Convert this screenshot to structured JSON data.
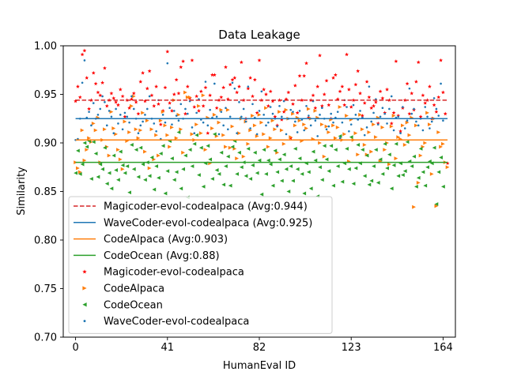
{
  "chart_data": {
    "type": "scatter",
    "title": "Data Leakage",
    "xlabel": "HumanEval ID",
    "ylabel": "Similarity",
    "xlim": [
      -5.5,
      169.5
    ],
    "ylim": [
      0.7,
      1.0
    ],
    "xticks": [
      0,
      41,
      82,
      123,
      164
    ],
    "yticks": [
      0.7,
      0.75,
      0.8,
      0.85,
      0.9,
      0.95,
      1.0
    ],
    "grid": false,
    "legend_position": "lower-left",
    "average_lines": [
      {
        "name": "Magicoder-evol-codealpaca (Avg:0.944)",
        "y": 0.944,
        "color": "#d62728",
        "dashed": true
      },
      {
        "name": "WaveCoder-evol-codealpaca (Avg:0.925)",
        "y": 0.925,
        "color": "#1f77b4",
        "dashed": false
      },
      {
        "name": "CodeAlpaca (Avg:0.903)",
        "y": 0.903,
        "color": "#ff7f0e",
        "dashed": false
      },
      {
        "name": "CodeOcean (Avg:0.88)",
        "y": 0.88,
        "color": "#2ca02c",
        "dashed": false
      }
    ],
    "series": [
      {
        "name": "Magicoder-evol-codealpaca",
        "marker": "star",
        "color": "#ff0000",
        "values": [
          0.943,
          0.958,
          0.947,
          0.991,
          0.995,
          0.967,
          0.935,
          0.944,
          0.972,
          0.961,
          0.952,
          0.949,
          0.962,
          0.977,
          0.938,
          0.944,
          0.951,
          0.946,
          0.942,
          0.939,
          0.955,
          0.948,
          0.927,
          0.944,
          0.936,
          0.945,
          0.951,
          0.942,
          0.93,
          0.963,
          0.972,
          0.943,
          0.956,
          0.974,
          0.949,
          0.938,
          0.958,
          0.94,
          0.919,
          0.933,
          0.957,
          0.994,
          0.941,
          0.933,
          0.95,
          0.965,
          0.951,
          0.978,
          0.984,
          0.93,
          0.958,
          0.946,
          0.985,
          0.937,
          0.948,
          0.933,
          0.953,
          0.938,
          0.957,
          0.91,
          0.949,
          0.97,
          0.97,
          0.936,
          0.944,
          0.947,
          0.957,
          0.978,
          0.945,
          0.96,
          0.965,
          0.967,
          0.952,
          0.958,
          0.983,
          0.944,
          0.925,
          0.956,
          0.967,
          0.948,
          0.965,
          0.931,
          0.985,
          0.944,
          0.955,
          0.95,
          0.938,
          0.953,
          0.943,
          0.927,
          0.918,
          0.944,
          0.924,
          0.932,
          0.945,
          0.952,
          0.905,
          0.94,
          0.959,
          0.931,
          0.969,
          0.944,
          0.969,
          0.982,
          0.926,
          0.944,
          0.949,
          0.936,
          0.958,
          0.99,
          0.938,
          0.95,
          0.964,
          0.939,
          0.925,
          0.967,
          0.97,
          0.945,
          0.953,
          0.958,
          0.939,
          0.991,
          0.955,
          0.937,
          0.944,
          0.96,
          0.974,
          0.951,
          0.928,
          0.941,
          0.963,
          0.947,
          0.936,
          0.938,
          0.942,
          0.92,
          0.953,
          0.946,
          0.931,
          0.955,
          0.944,
          0.92,
          0.931,
          0.984,
          0.928,
          0.912,
          0.936,
          0.944,
          0.961,
          0.93,
          0.951,
          0.934,
          0.963,
          0.983,
          0.927,
          0.949,
          0.941,
          0.944,
          0.958,
          0.925,
          0.939,
          0.932,
          0.947,
          0.985,
          0.952,
          0.93,
          0.879
        ]
      },
      {
        "name": "CodeAlpaca",
        "marker": "triangle-right",
        "color": "#ff7f0e",
        "values": [
          0.88,
          0.874,
          0.87,
          0.913,
          0.882,
          0.893,
          0.905,
          0.901,
          0.92,
          0.913,
          0.926,
          0.88,
          0.903,
          0.914,
          0.896,
          0.887,
          0.932,
          0.915,
          0.909,
          0.893,
          0.883,
          0.873,
          0.922,
          0.902,
          0.911,
          0.938,
          0.948,
          0.914,
          0.905,
          0.913,
          0.931,
          0.891,
          0.923,
          0.874,
          0.914,
          0.883,
          0.908,
          0.887,
          0.923,
          0.932,
          0.918,
          0.908,
          0.896,
          0.916,
          0.944,
          0.905,
          0.929,
          0.914,
          0.89,
          0.952,
          0.947,
          0.947,
          0.909,
          0.903,
          0.919,
          0.938,
          0.91,
          0.949,
          0.893,
          0.926,
          0.879,
          0.915,
          0.929,
          0.907,
          0.921,
          0.934,
          0.908,
          0.896,
          0.934,
          0.895,
          0.917,
          0.894,
          0.884,
          0.91,
          0.925,
          0.886,
          0.922,
          0.899,
          0.913,
          0.928,
          0.918,
          0.907,
          0.929,
          0.921,
          0.909,
          0.936,
          0.896,
          0.905,
          0.923,
          0.914,
          0.89,
          0.932,
          0.913,
          0.899,
          0.934,
          0.925,
          0.906,
          0.93,
          0.918,
          0.926,
          0.923,
          0.902,
          0.919,
          0.915,
          0.935,
          0.925,
          0.904,
          0.933,
          0.926,
          0.9,
          0.919,
          0.886,
          0.917,
          0.911,
          0.924,
          0.918,
          0.905,
          0.916,
          0.937,
          0.903,
          0.909,
          0.928,
          0.881,
          0.924,
          0.903,
          0.91,
          0.888,
          0.929,
          0.914,
          0.898,
          0.888,
          0.911,
          0.891,
          0.919,
          0.906,
          0.926,
          0.881,
          0.916,
          0.893,
          0.9,
          0.878,
          0.917,
          0.928,
          0.884,
          0.906,
          0.904,
          0.918,
          0.898,
          0.921,
          0.908,
          0.926,
          0.834,
          0.918,
          0.859,
          0.887,
          0.896,
          0.9,
          0.931,
          0.919,
          0.868,
          0.925,
          0.835,
          0.911,
          0.896,
          0.899,
          0.88,
          0.875
        ]
      },
      {
        "name": "CodeOcean",
        "marker": "triangle-left",
        "color": "#2ca02c",
        "values": [
          0.869,
          0.892,
          0.868,
          0.878,
          0.9,
          0.896,
          0.902,
          0.863,
          0.901,
          0.889,
          0.865,
          0.878,
          0.873,
          0.895,
          0.858,
          0.869,
          0.853,
          0.887,
          0.872,
          0.862,
          0.891,
          0.877,
          0.869,
          0.876,
          0.849,
          0.898,
          0.873,
          0.893,
          0.865,
          0.895,
          0.878,
          0.862,
          0.88,
          0.866,
          0.885,
          0.852,
          0.876,
          0.864,
          0.889,
          0.897,
          0.848,
          0.871,
          0.902,
          0.884,
          0.862,
          0.87,
          0.911,
          0.853,
          0.873,
          0.887,
          0.844,
          0.893,
          0.876,
          0.899,
          0.908,
          0.867,
          0.895,
          0.855,
          0.879,
          0.897,
          0.883,
          0.863,
          0.909,
          0.872,
          0.868,
          0.89,
          0.857,
          0.876,
          0.886,
          0.856,
          0.896,
          0.902,
          0.868,
          0.89,
          0.875,
          0.88,
          0.866,
          0.894,
          0.863,
          0.877,
          0.89,
          0.869,
          0.882,
          0.847,
          0.893,
          0.868,
          0.882,
          0.878,
          0.856,
          0.892,
          0.87,
          0.883,
          0.861,
          0.888,
          0.873,
          0.85,
          0.876,
          0.861,
          0.894,
          0.873,
          0.884,
          0.868,
          0.848,
          0.879,
          0.87,
          0.853,
          0.891,
          0.882,
          0.845,
          0.875,
          0.862,
          0.897,
          0.883,
          0.871,
          0.897,
          0.856,
          0.893,
          0.876,
          0.907,
          0.86,
          0.879,
          0.894,
          0.873,
          0.906,
          0.858,
          0.874,
          0.898,
          0.879,
          0.893,
          0.866,
          0.887,
          0.857,
          0.861,
          0.876,
          0.893,
          0.859,
          0.883,
          0.868,
          0.899,
          0.874,
          0.888,
          0.853,
          0.877,
          0.899,
          0.866,
          0.879,
          0.867,
          0.871,
          0.901,
          0.881,
          0.876,
          0.886,
          0.855,
          0.864,
          0.894,
          0.87,
          0.856,
          0.875,
          0.881,
          0.879,
          0.895,
          0.837,
          0.87,
          0.885,
          0.855
        ]
      },
      {
        "name": "WaveCoder-evol-codealpaca",
        "marker": "point",
        "color": "#1f77b4",
        "values": [
          0.903,
          0.904,
          0.925,
          0.962,
          0.985,
          0.926,
          0.932,
          0.918,
          0.941,
          0.925,
          0.929,
          0.935,
          0.948,
          0.942,
          0.918,
          0.933,
          0.927,
          0.91,
          0.935,
          0.92,
          0.929,
          0.914,
          0.931,
          0.927,
          0.921,
          0.948,
          0.935,
          0.925,
          0.91,
          0.918,
          0.922,
          0.929,
          0.935,
          0.948,
          0.925,
          0.92,
          0.912,
          0.944,
          0.904,
          0.929,
          0.921,
          0.982,
          0.936,
          0.919,
          0.933,
          0.928,
          0.923,
          0.94,
          0.925,
          0.935,
          0.93,
          0.943,
          0.916,
          0.91,
          0.931,
          0.945,
          0.924,
          0.921,
          0.963,
          0.918,
          0.934,
          0.926,
          0.961,
          0.927,
          0.909,
          0.932,
          0.918,
          0.936,
          0.914,
          0.927,
          0.962,
          0.956,
          0.91,
          0.942,
          0.927,
          0.935,
          0.922,
          0.958,
          0.915,
          0.94,
          0.926,
          0.909,
          0.933,
          0.953,
          0.929,
          0.918,
          0.921,
          0.937,
          0.93,
          0.925,
          0.917,
          0.938,
          0.927,
          0.943,
          0.909,
          0.925,
          0.934,
          0.932,
          0.922,
          0.911,
          0.933,
          0.924,
          0.913,
          0.938,
          0.928,
          0.918,
          0.943,
          0.923,
          0.907,
          0.929,
          0.936,
          0.925,
          0.914,
          0.917,
          0.93,
          0.921,
          0.926,
          0.932,
          0.905,
          0.921,
          0.944,
          0.937,
          0.912,
          0.919,
          0.939,
          0.929,
          0.924,
          0.933,
          0.926,
          0.908,
          0.916,
          0.958,
          0.922,
          0.931,
          0.945,
          0.919,
          0.927,
          0.936,
          0.93,
          0.92,
          0.935,
          0.948,
          0.913,
          0.926,
          0.927,
          0.91,
          0.937,
          0.915,
          0.923,
          0.956,
          0.93,
          0.935,
          0.922,
          0.918,
          0.925,
          0.913,
          0.937,
          0.927,
          0.915,
          0.922,
          0.946,
          0.935,
          0.928,
          0.961,
          0.923
        ]
      }
    ]
  }
}
